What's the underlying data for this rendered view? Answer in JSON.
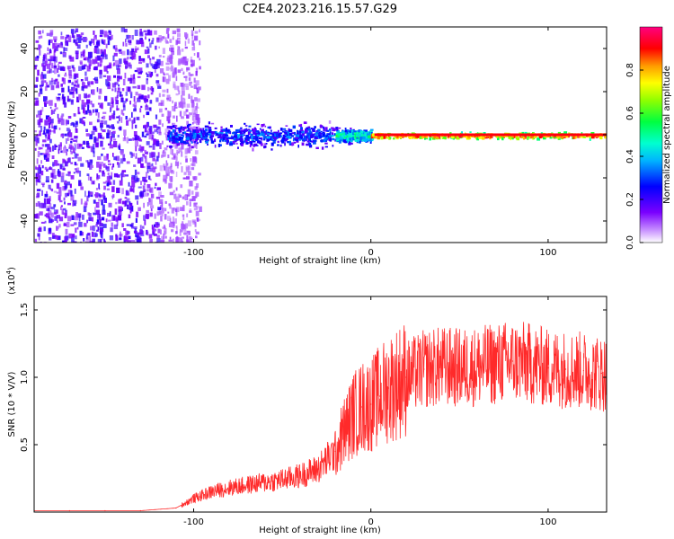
{
  "title": "C2E4.2023.216.15.57.G29",
  "colors": {
    "snr_line": "#ff2a2a",
    "spectrogram_low": "#7a00ff",
    "spectrogram_high": "#ff0000"
  },
  "chart_data": [
    {
      "type": "heatmap",
      "title": "C2E4.2023.216.15.57.G29",
      "xlabel": "Height of straight line (km)",
      "ylabel": "Frequency (Hz)",
      "xlim": [
        -190,
        133
      ],
      "ylim": [
        -50,
        50
      ],
      "x_ticks": [
        -100,
        0,
        100
      ],
      "x_tick_labels": [
        "-100",
        "0",
        "100"
      ],
      "y_ticks": [
        -40,
        -20,
        0,
        20,
        40
      ],
      "y_tick_labels": [
        "-40",
        "-20",
        "0",
        "20",
        "40"
      ],
      "colorbar": {
        "label": "Normalized spectral amplitude",
        "range": [
          0,
          1
        ],
        "ticks": [
          0.0,
          0.2,
          0.4,
          0.6,
          0.8
        ],
        "tick_labels": [
          "0.0",
          "0.2",
          "0.4",
          "0.6",
          "0.8"
        ],
        "colormap": "rainbow (violet → blue → cyan → green → yellow → red → magenta)"
      },
      "regions": [
        {
          "x_range": [
            -190,
            -105
          ],
          "freq_range": [
            -50,
            50
          ],
          "amplitude": 0.05,
          "description": "noise"
        },
        {
          "x_range": [
            -115,
            -20
          ],
          "freq_center": 0,
          "freq_halfwidth": 8,
          "amplitude": 0.3
        },
        {
          "x_range": [
            -20,
            0
          ],
          "freq_center": 0,
          "freq_halfwidth": 4,
          "amplitude": 0.5
        },
        {
          "x_range": [
            0,
            133
          ],
          "freq_center": 0,
          "freq_halfwidth": 2,
          "amplitude": 0.9
        }
      ],
      "grid": false
    },
    {
      "type": "line",
      "title": "",
      "xlabel": "Height of straight line (km)",
      "ylabel": "SNR (10 * V/V)",
      "y_scale_note": "(x10",
      "y_scale_exponent": "4",
      "y_scale_close": ")",
      "xlim": [
        -190,
        133
      ],
      "ylim": [
        0,
        1.6
      ],
      "x_ticks": [
        -100,
        0,
        100
      ],
      "x_tick_labels": [
        "-100",
        "0",
        "100"
      ],
      "y_ticks": [
        0.5,
        1.0,
        1.5
      ],
      "y_tick_labels": [
        "0.5",
        "1.0",
        "1.5"
      ],
      "series": [
        {
          "color": "#ff2a2a",
          "x": [
            -190,
            -170,
            -150,
            -130,
            -110,
            -100,
            -90,
            -80,
            -70,
            -60,
            -50,
            -40,
            -30,
            -20,
            -15,
            -10,
            -5,
            0,
            5,
            10,
            20,
            30,
            40,
            50,
            60,
            70,
            80,
            90,
            100,
            110,
            120,
            130
          ],
          "values": [
            0.01,
            0.01,
            0.01,
            0.01,
            0.03,
            0.1,
            0.15,
            0.18,
            0.2,
            0.22,
            0.24,
            0.27,
            0.32,
            0.45,
            0.6,
            0.72,
            0.78,
            0.8,
            0.86,
            0.92,
            1.0,
            1.06,
            1.08,
            1.07,
            1.08,
            1.1,
            1.12,
            1.1,
            1.07,
            1.06,
            1.05,
            1.03
          ]
        }
      ],
      "grid": false
    }
  ]
}
